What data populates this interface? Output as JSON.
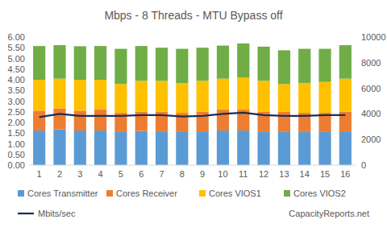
{
  "chart_data": {
    "type": "bar",
    "title": "Mbps - 8 Threads - MTU Bypass off",
    "stacked": true,
    "grid": false,
    "legend": "bottom",
    "categories": [
      "1",
      "2",
      "3",
      "4",
      "5",
      "6",
      "7",
      "8",
      "9",
      "10",
      "11",
      "12",
      "13",
      "14",
      "15",
      "16"
    ],
    "series": [
      {
        "name": "Cores Transmitter",
        "color": "#5b9bd5",
        "values": [
          1.62,
          1.68,
          1.62,
          1.62,
          1.55,
          1.6,
          1.58,
          1.55,
          1.58,
          1.62,
          1.62,
          1.58,
          1.55,
          1.55,
          1.55,
          1.58
        ]
      },
      {
        "name": "Cores Receiver",
        "color": "#ed7d31",
        "values": [
          0.93,
          0.97,
          0.93,
          0.98,
          0.9,
          0.9,
          0.92,
          0.9,
          0.92,
          0.98,
          0.98,
          0.92,
          0.95,
          0.9,
          0.9,
          0.92
        ]
      },
      {
        "name": "Cores VIOS1",
        "color": "#ffc000",
        "values": [
          1.45,
          1.4,
          1.45,
          1.4,
          1.35,
          1.45,
          1.45,
          1.4,
          1.45,
          1.45,
          1.5,
          1.45,
          1.3,
          1.4,
          1.45,
          1.55
        ]
      },
      {
        "name": "Cores VIOS2",
        "color": "#70ad47",
        "values": [
          1.58,
          1.57,
          1.57,
          1.58,
          1.65,
          1.63,
          1.55,
          1.6,
          1.55,
          1.55,
          1.6,
          1.6,
          1.58,
          1.6,
          1.55,
          1.57
        ]
      },
      {
        "name": "Mbits/sec",
        "color": "#1f2d50",
        "type": "line",
        "axis": "y2",
        "values": [
          3750,
          4000,
          3850,
          3850,
          3850,
          3900,
          3900,
          3800,
          3850,
          4000,
          4100,
          3900,
          3850,
          3850,
          3900,
          3900
        ]
      }
    ],
    "ylim": [
      0,
      6
    ],
    "yticks": [
      {
        "value": 0,
        "label": "0.00"
      },
      {
        "value": 0.5,
        "label": "0.50"
      },
      {
        "value": 1,
        "label": "1.00"
      },
      {
        "value": 1.5,
        "label": "1.50"
      },
      {
        "value": 2,
        "label": "2.00"
      },
      {
        "value": 2.5,
        "label": "2.50"
      },
      {
        "value": 3,
        "label": "3.00"
      },
      {
        "value": 3.5,
        "label": "3.50"
      },
      {
        "value": 4,
        "label": "4.00"
      },
      {
        "value": 4.5,
        "label": "4.50"
      },
      {
        "value": 5,
        "label": "5.00"
      },
      {
        "value": 5.5,
        "label": "5.50"
      },
      {
        "value": 6,
        "label": "6.00"
      }
    ],
    "y2lim": [
      0,
      10000
    ],
    "y2ticks": [
      0,
      2000,
      4000,
      6000,
      8000,
      10000
    ],
    "annotations": [
      "CapacityReports.net"
    ]
  }
}
